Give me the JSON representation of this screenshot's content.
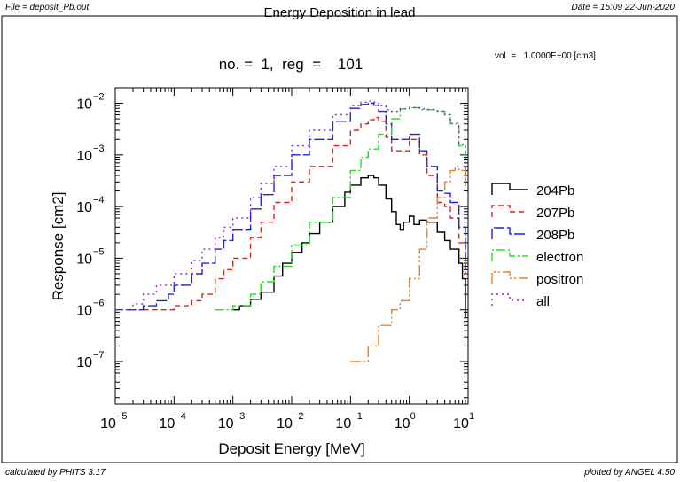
{
  "header": {
    "file": "File = deposit_Pb.out",
    "date": "Date = 15:09 22-Jun-2020"
  },
  "footer": {
    "calculated_by": "calculated by PHITS 3.17",
    "plotted_by": "plotted by ANGEL 4.50"
  },
  "chart_data": {
    "type": "line",
    "title": "Energy Deposition in lead",
    "subtitle": "no. =  1,  reg  =    101",
    "annotation": "vol  =   1.0000E+00 [cm3]",
    "xlabel": "Deposit Energy [MeV]",
    "ylabel": "Response [cm2]",
    "xscale": "log",
    "yscale": "log",
    "xlim": [
      1e-05,
      10
    ],
    "ylim": [
      1.5e-08,
      0.02
    ],
    "x_ticks": [
      {
        "value": 1e-05,
        "label": "10",
        "exp": "−5"
      },
      {
        "value": 0.0001,
        "label": "10",
        "exp": "−4"
      },
      {
        "value": 0.001,
        "label": "10",
        "exp": "−3"
      },
      {
        "value": 0.01,
        "label": "10",
        "exp": "−2"
      },
      {
        "value": 0.1,
        "label": "10",
        "exp": "−1"
      },
      {
        "value": 1,
        "label": "10",
        "exp": "0"
      },
      {
        "value": 10,
        "label": "10",
        "exp": "1"
      }
    ],
    "y_ticks": [
      {
        "value": 1e-07,
        "label": "10",
        "exp": "−7"
      },
      {
        "value": 1e-06,
        "label": "10",
        "exp": "−6"
      },
      {
        "value": 1e-05,
        "label": "10",
        "exp": "−5"
      },
      {
        "value": 0.0001,
        "label": "10",
        "exp": "−4"
      },
      {
        "value": 0.001,
        "label": "10",
        "exp": "−3"
      },
      {
        "value": 0.01,
        "label": "10",
        "exp": "−2"
      }
    ],
    "grid": false,
    "legend_position": "right",
    "series": [
      {
        "name": "204Pb",
        "color": "#000000",
        "dash": "solid",
        "x": [
          0.001,
          0.0013,
          0.002,
          0.003,
          0.005,
          0.007,
          0.01,
          0.015,
          0.02,
          0.03,
          0.05,
          0.08,
          0.1,
          0.15,
          0.2,
          0.25,
          0.3,
          0.4,
          0.5,
          0.6,
          0.7,
          0.8,
          1.0,
          1.2,
          1.5,
          2.0,
          3.0,
          4.0,
          5.0,
          7.0,
          8.0,
          9.0
        ],
        "y": [
          1e-06,
          1.2e-06,
          1.6e-06,
          2.2e-06,
          4.5e-06,
          8e-06,
          1.3e-05,
          2e-05,
          3e-05,
          5e-05,
          0.0001,
          0.00019,
          0.00026,
          0.00036,
          0.0004,
          0.00036,
          0.00026,
          0.00014,
          8e-05,
          4.5e-05,
          3.5e-05,
          5e-05,
          6.5e-05,
          4.5e-05,
          5.5e-05,
          5e-05,
          3.2e-05,
          2.2e-05,
          1.5e-05,
          8e-06,
          4e-06,
          7e-07
        ]
      },
      {
        "name": "207Pb",
        "color": "#e02020",
        "dash": "6,4",
        "x": [
          3e-05,
          5e-05,
          0.0001,
          0.0002,
          0.0003,
          0.0005,
          0.0007,
          0.001,
          0.002,
          0.003,
          0.005,
          0.01,
          0.02,
          0.05,
          0.1,
          0.15,
          0.2,
          0.25,
          0.3,
          0.4,
          0.5,
          0.7,
          1.0,
          1.5,
          2.0,
          3.0,
          4.0,
          5.0,
          7.0,
          9.0
        ],
        "y": [
          1e-06,
          1e-06,
          1.2e-06,
          1.5e-06,
          2e-06,
          4e-06,
          6e-06,
          1e-05,
          2.5e-05,
          5e-05,
          0.00012,
          0.0003,
          0.0006,
          0.0015,
          0.003,
          0.004,
          0.0048,
          0.0053,
          0.0045,
          0.0022,
          0.0012,
          0.0012,
          0.002,
          0.001,
          0.0004,
          0.00012,
          0.0001,
          6e-05,
          2e-05,
          5e-06
        ]
      },
      {
        "name": "208Pb",
        "color": "#2020e0",
        "dash": "12,3",
        "x": [
          1.5e-05,
          3e-05,
          5e-05,
          8e-05,
          0.0001,
          0.0002,
          0.0003,
          0.0005,
          0.0007,
          0.001,
          0.002,
          0.003,
          0.005,
          0.01,
          0.02,
          0.05,
          0.1,
          0.15,
          0.2,
          0.25,
          0.3,
          0.4,
          0.5,
          0.7,
          1.0,
          1.5,
          2.0,
          3.0,
          4.0,
          5.0,
          7.0,
          9.0
        ],
        "y": [
          1e-06,
          1.2e-06,
          1.5e-06,
          2e-06,
          3e-06,
          5e-06,
          8e-06,
          1.5e-05,
          2.2e-05,
          3.5e-05,
          9e-05,
          0.00017,
          0.0004,
          0.001,
          0.002,
          0.0045,
          0.008,
          0.0095,
          0.01,
          0.0092,
          0.007,
          0.004,
          0.002,
          0.002,
          0.0025,
          0.0012,
          0.0006,
          0.0002,
          0.00018,
          0.00012,
          4e-05,
          6e-06
        ]
      },
      {
        "name": "electron",
        "color": "#20e020",
        "dash": "10,3,2,3",
        "x": [
          0.0005,
          0.001,
          0.002,
          0.003,
          0.005,
          0.01,
          0.02,
          0.05,
          0.1,
          0.15,
          0.2,
          0.3,
          0.5,
          0.7,
          1.0,
          1.5,
          2.0,
          3.0,
          4.0,
          5.0,
          7.0,
          9.0
        ],
        "y": [
          1e-06,
          1.2e-06,
          2e-06,
          3.5e-06,
          7e-06,
          1.8e-05,
          5e-05,
          0.00015,
          0.0005,
          0.0009,
          0.0013,
          0.0025,
          0.005,
          0.0078,
          0.0082,
          0.0075,
          0.0075,
          0.007,
          0.006,
          0.004,
          0.0015,
          0.00025
        ]
      },
      {
        "name": "positron",
        "color": "#f08020",
        "dash": "12,3,2,3,2,3",
        "x": [
          0.1,
          0.2,
          0.3,
          0.5,
          0.7,
          1.0,
          1.5,
          2.0,
          3.0,
          4.0,
          5.0,
          6.0,
          7.0,
          9.0
        ],
        "y": [
          1e-07,
          2e-07,
          5e-07,
          1e-06,
          1.5e-06,
          4e-06,
          1.5e-05,
          6e-05,
          0.00015,
          0.0003,
          0.0005,
          0.0006,
          0.0005,
          0.0003
        ]
      },
      {
        "name": "all",
        "color": "#9020e0",
        "dash": "2,4",
        "x": [
          1e-05,
          2e-05,
          3e-05,
          5e-05,
          0.0001,
          0.0002,
          0.0003,
          0.0005,
          0.0007,
          0.001,
          0.002,
          0.003,
          0.005,
          0.01,
          0.02,
          0.05,
          0.1,
          0.15,
          0.2,
          0.25,
          0.3,
          0.4,
          0.5,
          0.7,
          1.0,
          1.5,
          2.0,
          3.0,
          4.0,
          5.0,
          7.0,
          9.0
        ],
        "y": [
          1e-06,
          1.3e-06,
          2e-06,
          3e-06,
          5e-06,
          9e-06,
          1.5e-05,
          2.5e-05,
          4e-05,
          6e-05,
          0.00015,
          0.00028,
          0.0006,
          0.0015,
          0.003,
          0.006,
          0.009,
          0.0105,
          0.011,
          0.0105,
          0.009,
          0.0075,
          0.007,
          0.0078,
          0.0083,
          0.0078,
          0.0076,
          0.0071,
          0.006,
          0.0041,
          0.0016,
          0.0003
        ]
      }
    ]
  }
}
